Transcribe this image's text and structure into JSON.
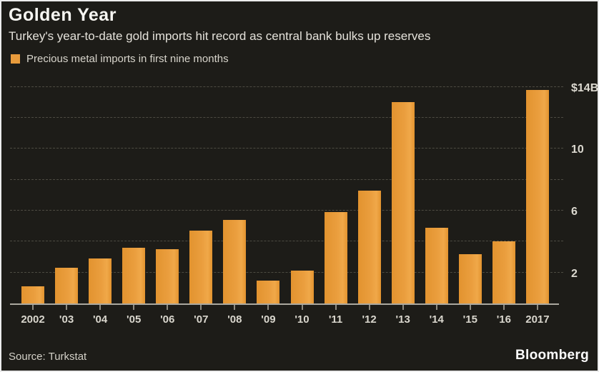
{
  "header": {
    "title": "Golden Year",
    "subtitle": "Turkey's year-to-date gold imports hit record as central bank bulks up reserves"
  },
  "legend": {
    "label": "Precious metal imports in first nine months",
    "swatch_color": "#e89b3c"
  },
  "chart_data": {
    "type": "bar",
    "title": "Golden Year",
    "subtitle": "Turkey's year-to-date gold imports hit record as central bank bulks up reserves",
    "legend_entry": "Precious metal imports in first nine months",
    "categories": [
      "2002",
      "'03",
      "'04",
      "'05",
      "'06",
      "'07",
      "'08",
      "'09",
      "'10",
      "'11",
      "'12",
      "'13",
      "'14",
      "'15",
      "'16",
      "2017"
    ],
    "values": [
      1.1,
      2.3,
      2.9,
      3.6,
      3.5,
      4.7,
      5.4,
      1.5,
      2.1,
      5.9,
      7.3,
      13.0,
      4.9,
      3.2,
      4.0,
      13.8
    ],
    "unit": "USD billions",
    "ylabel": "",
    "xlabel": "",
    "ylim": [
      0,
      14.67
    ],
    "y_tick_labels": [
      {
        "value": 14,
        "label": "$14B"
      },
      {
        "value": 10,
        "label": "10"
      },
      {
        "value": 6,
        "label": "6"
      },
      {
        "value": 2,
        "label": "2"
      }
    ],
    "gridline_values": [
      2,
      4,
      6,
      8,
      10,
      12,
      14
    ],
    "grid": "horizontal-dashed",
    "legend_position": "top-left",
    "bar_color": "#e89b3c",
    "background_color": "#1d1c18"
  },
  "footer": {
    "source": "Source: Turkstat",
    "brand": "Bloomberg"
  }
}
